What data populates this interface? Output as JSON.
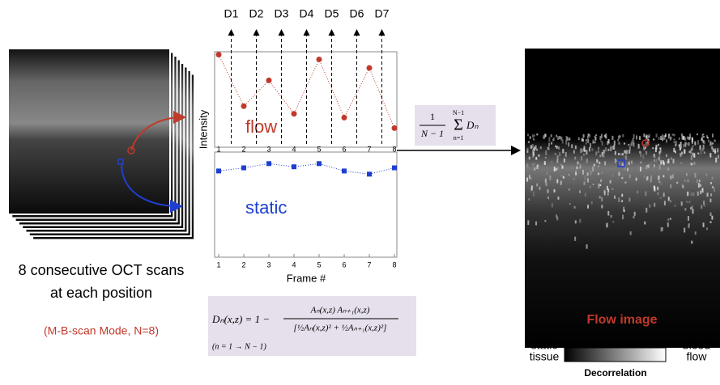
{
  "labels": {
    "d": [
      "D1",
      "D2",
      "D3",
      "D4",
      "D5",
      "D6",
      "D7"
    ]
  },
  "left": {
    "caption": [
      "8 consecutive OCT scans",
      "at each position"
    ],
    "mode": "(M-B-scan Mode, N=8)"
  },
  "plot": {
    "ylabel": "Intensity",
    "xlabel": "Frame #",
    "xticks": [
      1,
      2,
      3,
      4,
      5,
      6,
      7,
      8
    ],
    "flow": {
      "name": "flow",
      "color": "#c0392b",
      "values": [
        0.97,
        0.43,
        0.7,
        0.35,
        0.92,
        0.31,
        0.83,
        0.2
      ]
    },
    "static": {
      "name": "static",
      "color": "#1f3fd0",
      "values": [
        0.82,
        0.85,
        0.89,
        0.86,
        0.89,
        0.82,
        0.79,
        0.85
      ]
    }
  },
  "sum": {
    "numerator": "1",
    "denominator": "N − 1",
    "sigma": "Σ",
    "upper": "N−1",
    "lower": "n=1",
    "term": "Dₙ"
  },
  "formula": {
    "lhs": "Dₙ(x,z) = 1 −",
    "numerator": "Aₙ(x,z) Aₙ₊₁(x,z)",
    "denominator": "[½Aₙ(x,z)² + ½Aₙ₊₁(x,z)²]",
    "condition": "(n = 1 → N − 1)"
  },
  "right": {
    "title": "Flow image",
    "low": [
      "static",
      "tissue"
    ],
    "high": [
      "blood",
      "flow"
    ],
    "bar": "Decorrelation"
  }
}
